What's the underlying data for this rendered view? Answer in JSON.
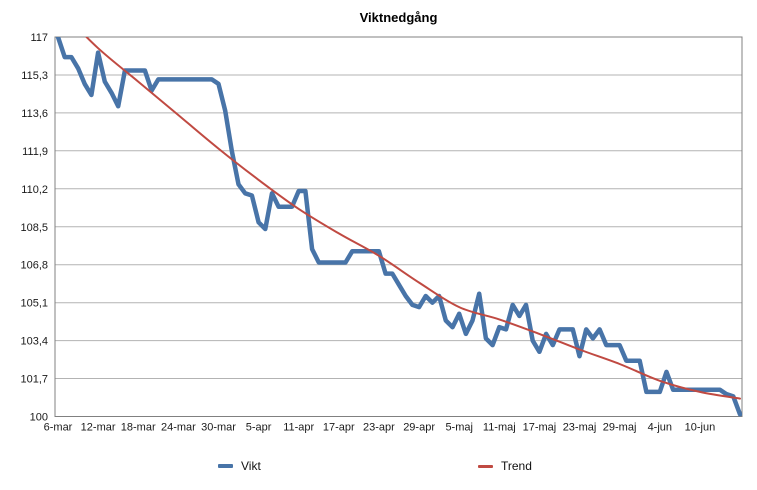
{
  "chart_data": {
    "type": "line",
    "title": "Viktnedgång",
    "x_axis": {
      "start_date": "6-mar",
      "interval_days": 1,
      "total_days": 102,
      "tick_positions_days": [
        0,
        6,
        12,
        18,
        24,
        30,
        36,
        42,
        48,
        54,
        60,
        66,
        72,
        78,
        84,
        90,
        96
      ],
      "tick_labels": [
        "6-mar",
        "12-mar",
        "18-mar",
        "24-mar",
        "30-mar",
        "5-apr",
        "11-apr",
        "17-apr",
        "23-apr",
        "29-apr",
        "5-maj",
        "11-maj",
        "17-maj",
        "23-maj",
        "29-maj",
        "4-jun",
        "10-jun"
      ]
    },
    "y_axis": {
      "min": 100,
      "max": 117,
      "tick_step": 1.7,
      "tick_values": [
        100,
        101.7,
        103.4,
        105.1,
        106.8,
        108.5,
        110.2,
        111.9,
        113.6,
        115.3,
        117
      ],
      "tick_labels": [
        "100",
        "101,7",
        "103,4",
        "105,1",
        "106,8",
        "108,5",
        "110,2",
        "111,9",
        "113,6",
        "115,3",
        "117"
      ]
    },
    "grid": "horizontal",
    "legend": {
      "position": "bottom",
      "entries": [
        "Vikt",
        "Trend"
      ]
    },
    "series": [
      {
        "name": "Vikt",
        "color": "#4874A8",
        "stroke_width": 4.5,
        "interval_days": 1,
        "values": [
          117.0,
          116.1,
          116.1,
          115.6,
          114.9,
          114.4,
          116.3,
          115.0,
          114.5,
          113.9,
          115.5,
          115.5,
          115.5,
          115.5,
          114.6,
          115.1,
          115.1,
          115.1,
          115.1,
          115.1,
          115.1,
          115.1,
          115.1,
          115.1,
          114.9,
          113.7,
          111.9,
          110.4,
          110.0,
          109.9,
          108.7,
          108.4,
          110.0,
          109.4,
          109.4,
          109.4,
          110.1,
          110.1,
          107.5,
          106.9,
          106.9,
          106.9,
          106.9,
          106.9,
          107.4,
          107.4,
          107.4,
          107.4,
          107.4,
          106.4,
          106.4,
          105.9,
          105.4,
          105.0,
          104.9,
          105.4,
          105.1,
          105.4,
          104.3,
          104.0,
          104.6,
          103.7,
          104.3,
          105.5,
          103.5,
          103.2,
          104.0,
          103.9,
          105.0,
          104.5,
          105.0,
          103.4,
          102.9,
          103.7,
          103.2,
          103.9,
          103.9,
          103.9,
          102.7,
          103.9,
          103.5,
          103.9,
          103.2,
          103.2,
          103.2,
          102.5,
          102.5,
          102.5,
          101.1,
          101.1,
          101.1,
          102.0,
          101.2,
          101.2,
          101.2,
          101.2,
          101.2,
          101.2,
          101.2,
          101.2,
          101.0,
          100.9,
          100.1
        ]
      },
      {
        "name": "Trend",
        "color": "#C04A42",
        "stroke_width": 2,
        "sample_days": [
          0,
          6,
          12,
          18,
          24,
          30,
          36,
          42,
          48,
          54,
          60,
          66,
          72,
          78,
          84,
          90,
          96,
          102
        ],
        "values": [
          118.3,
          116.5,
          115.0,
          113.5,
          112.0,
          110.6,
          109.3,
          108.2,
          107.2,
          106.0,
          104.9,
          104.35,
          103.7,
          103.0,
          102.35,
          101.6,
          101.1,
          100.8
        ]
      }
    ],
    "colors": {
      "grid": "#B3B3B3",
      "frame": "#808080",
      "text": "#1A1A1A",
      "background": "#FFFFFF"
    }
  }
}
